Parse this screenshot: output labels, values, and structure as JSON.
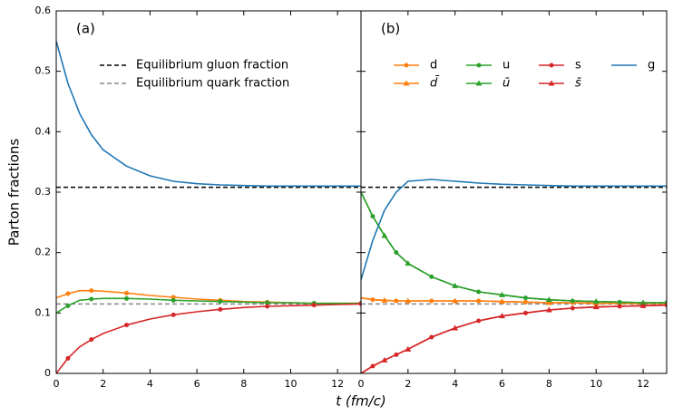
{
  "chart_data": [
    {
      "type": "line",
      "panel_label": "(a)",
      "ylabel": "Parton fractions",
      "xlabel": "t (fm/c)",
      "xlim": [
        0,
        13
      ],
      "xticks": [
        0,
        2,
        4,
        6,
        8,
        10,
        12
      ],
      "ylim": [
        0,
        0.6
      ],
      "yticks": [
        0.0,
        0.1,
        0.2,
        0.3,
        0.4,
        0.5,
        0.6
      ],
      "x": [
        0,
        0.5,
        1,
        1.5,
        2,
        3,
        4,
        5,
        6,
        7,
        8,
        9,
        10,
        11,
        12,
        13
      ],
      "reference_lines": [
        {
          "name": "Equilibrium gluon fraction",
          "value": 0.308,
          "color": "#000000"
        },
        {
          "name": "Equilibrium quark fraction",
          "value": 0.115,
          "color": "#888888"
        }
      ],
      "series": [
        {
          "name": "d",
          "color": "#ff7f0e",
          "marker": "circle",
          "values": [
            0.125,
            0.132,
            0.137,
            0.137,
            0.136,
            0.133,
            0.129,
            0.126,
            0.123,
            0.121,
            0.119,
            0.118,
            0.117,
            0.116,
            0.116,
            0.116
          ]
        },
        {
          "name": "u",
          "color": "#2ca02c",
          "marker": "circle",
          "values": [
            0.1,
            0.112,
            0.121,
            0.123,
            0.124,
            0.124,
            0.123,
            0.121,
            0.12,
            0.119,
            0.118,
            0.117,
            0.117,
            0.116,
            0.116,
            0.116
          ]
        },
        {
          "name": "s",
          "color": "#d62728",
          "marker": "circle",
          "values": [
            0,
            0.025,
            0.044,
            0.056,
            0.066,
            0.08,
            0.09,
            0.097,
            0.102,
            0.106,
            0.109,
            0.111,
            0.112,
            0.113,
            0.114,
            0.115
          ]
        },
        {
          "name": "g",
          "color": "#1f77b4",
          "values": [
            0.55,
            0.48,
            0.43,
            0.395,
            0.37,
            0.343,
            0.327,
            0.318,
            0.314,
            0.312,
            0.311,
            0.31,
            0.31,
            0.31,
            0.31,
            0.31
          ]
        }
      ]
    },
    {
      "type": "line",
      "panel_label": "(b)",
      "xlim": [
        0,
        13
      ],
      "xticks": [
        0,
        2,
        4,
        6,
        8,
        10,
        12
      ],
      "ylim": [
        0,
        0.6
      ],
      "yticks": [
        0.0,
        0.1,
        0.2,
        0.3,
        0.4,
        0.5,
        0.6
      ],
      "x": [
        0,
        0.5,
        1,
        1.5,
        2,
        3,
        4,
        5,
        6,
        7,
        8,
        9,
        10,
        11,
        12,
        13
      ],
      "reference_lines": [
        {
          "value": 0.308,
          "color": "#000000"
        },
        {
          "value": 0.115,
          "color": "#888888"
        }
      ],
      "series": [
        {
          "name": "d",
          "color": "#ff7f0e",
          "marker": "circle",
          "values": [
            0.125,
            0.122,
            0.121,
            0.12,
            0.12,
            0.12,
            0.12,
            0.12,
            0.119,
            0.118,
            0.117,
            0.117,
            0.116,
            0.116,
            0.116,
            0.116
          ]
        },
        {
          "name": "d̄",
          "color": "#ff7f0e",
          "marker": "triangle",
          "values": [
            0.125,
            0.122,
            0.121,
            0.12,
            0.12,
            0.12,
            0.12,
            0.12,
            0.119,
            0.118,
            0.117,
            0.117,
            0.116,
            0.116,
            0.116,
            0.116
          ]
        },
        {
          "name": "u",
          "color": "#2ca02c",
          "marker": "circle",
          "values": [
            0.3,
            0.26,
            0.228,
            0.2,
            0.182,
            0.16,
            0.145,
            0.135,
            0.13,
            0.125,
            0.122,
            0.12,
            0.119,
            0.118,
            0.117,
            0.117
          ]
        },
        {
          "name": "ū",
          "color": "#2ca02c",
          "marker": "triangle",
          "values": [
            0.3,
            0.26,
            0.228,
            0.2,
            0.182,
            0.16,
            0.145,
            0.135,
            0.13,
            0.125,
            0.122,
            0.12,
            0.119,
            0.118,
            0.117,
            0.117
          ]
        },
        {
          "name": "s",
          "color": "#d62728",
          "marker": "circle",
          "values": [
            0,
            0.012,
            0.022,
            0.031,
            0.04,
            0.06,
            0.075,
            0.087,
            0.095,
            0.1,
            0.105,
            0.108,
            0.11,
            0.111,
            0.112,
            0.113
          ]
        },
        {
          "name": "s̄",
          "color": "#d62728",
          "marker": "triangle",
          "values": [
            0,
            0.012,
            0.022,
            0.031,
            0.04,
            0.06,
            0.075,
            0.087,
            0.095,
            0.1,
            0.105,
            0.108,
            0.11,
            0.111,
            0.112,
            0.113
          ]
        },
        {
          "name": "g",
          "color": "#1f77b4",
          "values": [
            0.155,
            0.22,
            0.27,
            0.3,
            0.318,
            0.321,
            0.318,
            0.315,
            0.313,
            0.312,
            0.311,
            0.31,
            0.31,
            0.31,
            0.31,
            0.31
          ]
        }
      ]
    }
  ]
}
